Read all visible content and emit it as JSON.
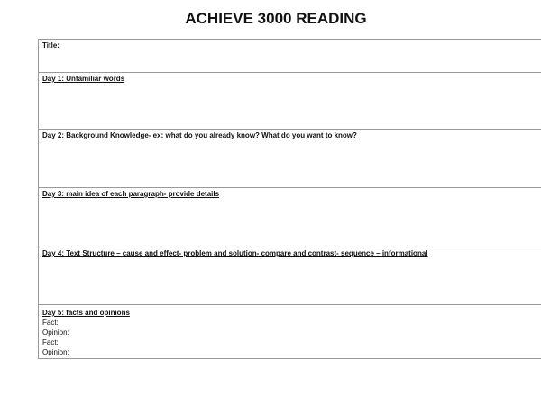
{
  "heading": "ACHIEVE 3000 READING",
  "rows": [
    {
      "label": "Title:"
    },
    {
      "label": "Day 1: Unfamiliar words"
    },
    {
      "label": "Day 2: Background Knowledge- ex: what do you already know? What do you want to know?"
    },
    {
      "label": "Day 3: main idea of each paragraph- provide details"
    },
    {
      "label": "Day 4: Text Structure – cause and effect- problem and solution- compare and contrast- sequence – informational"
    },
    {
      "label": "Day 5: facts and opinions",
      "lines": [
        "Fact:",
        "Opinion:",
        "Fact:",
        "Opinion:"
      ]
    }
  ]
}
